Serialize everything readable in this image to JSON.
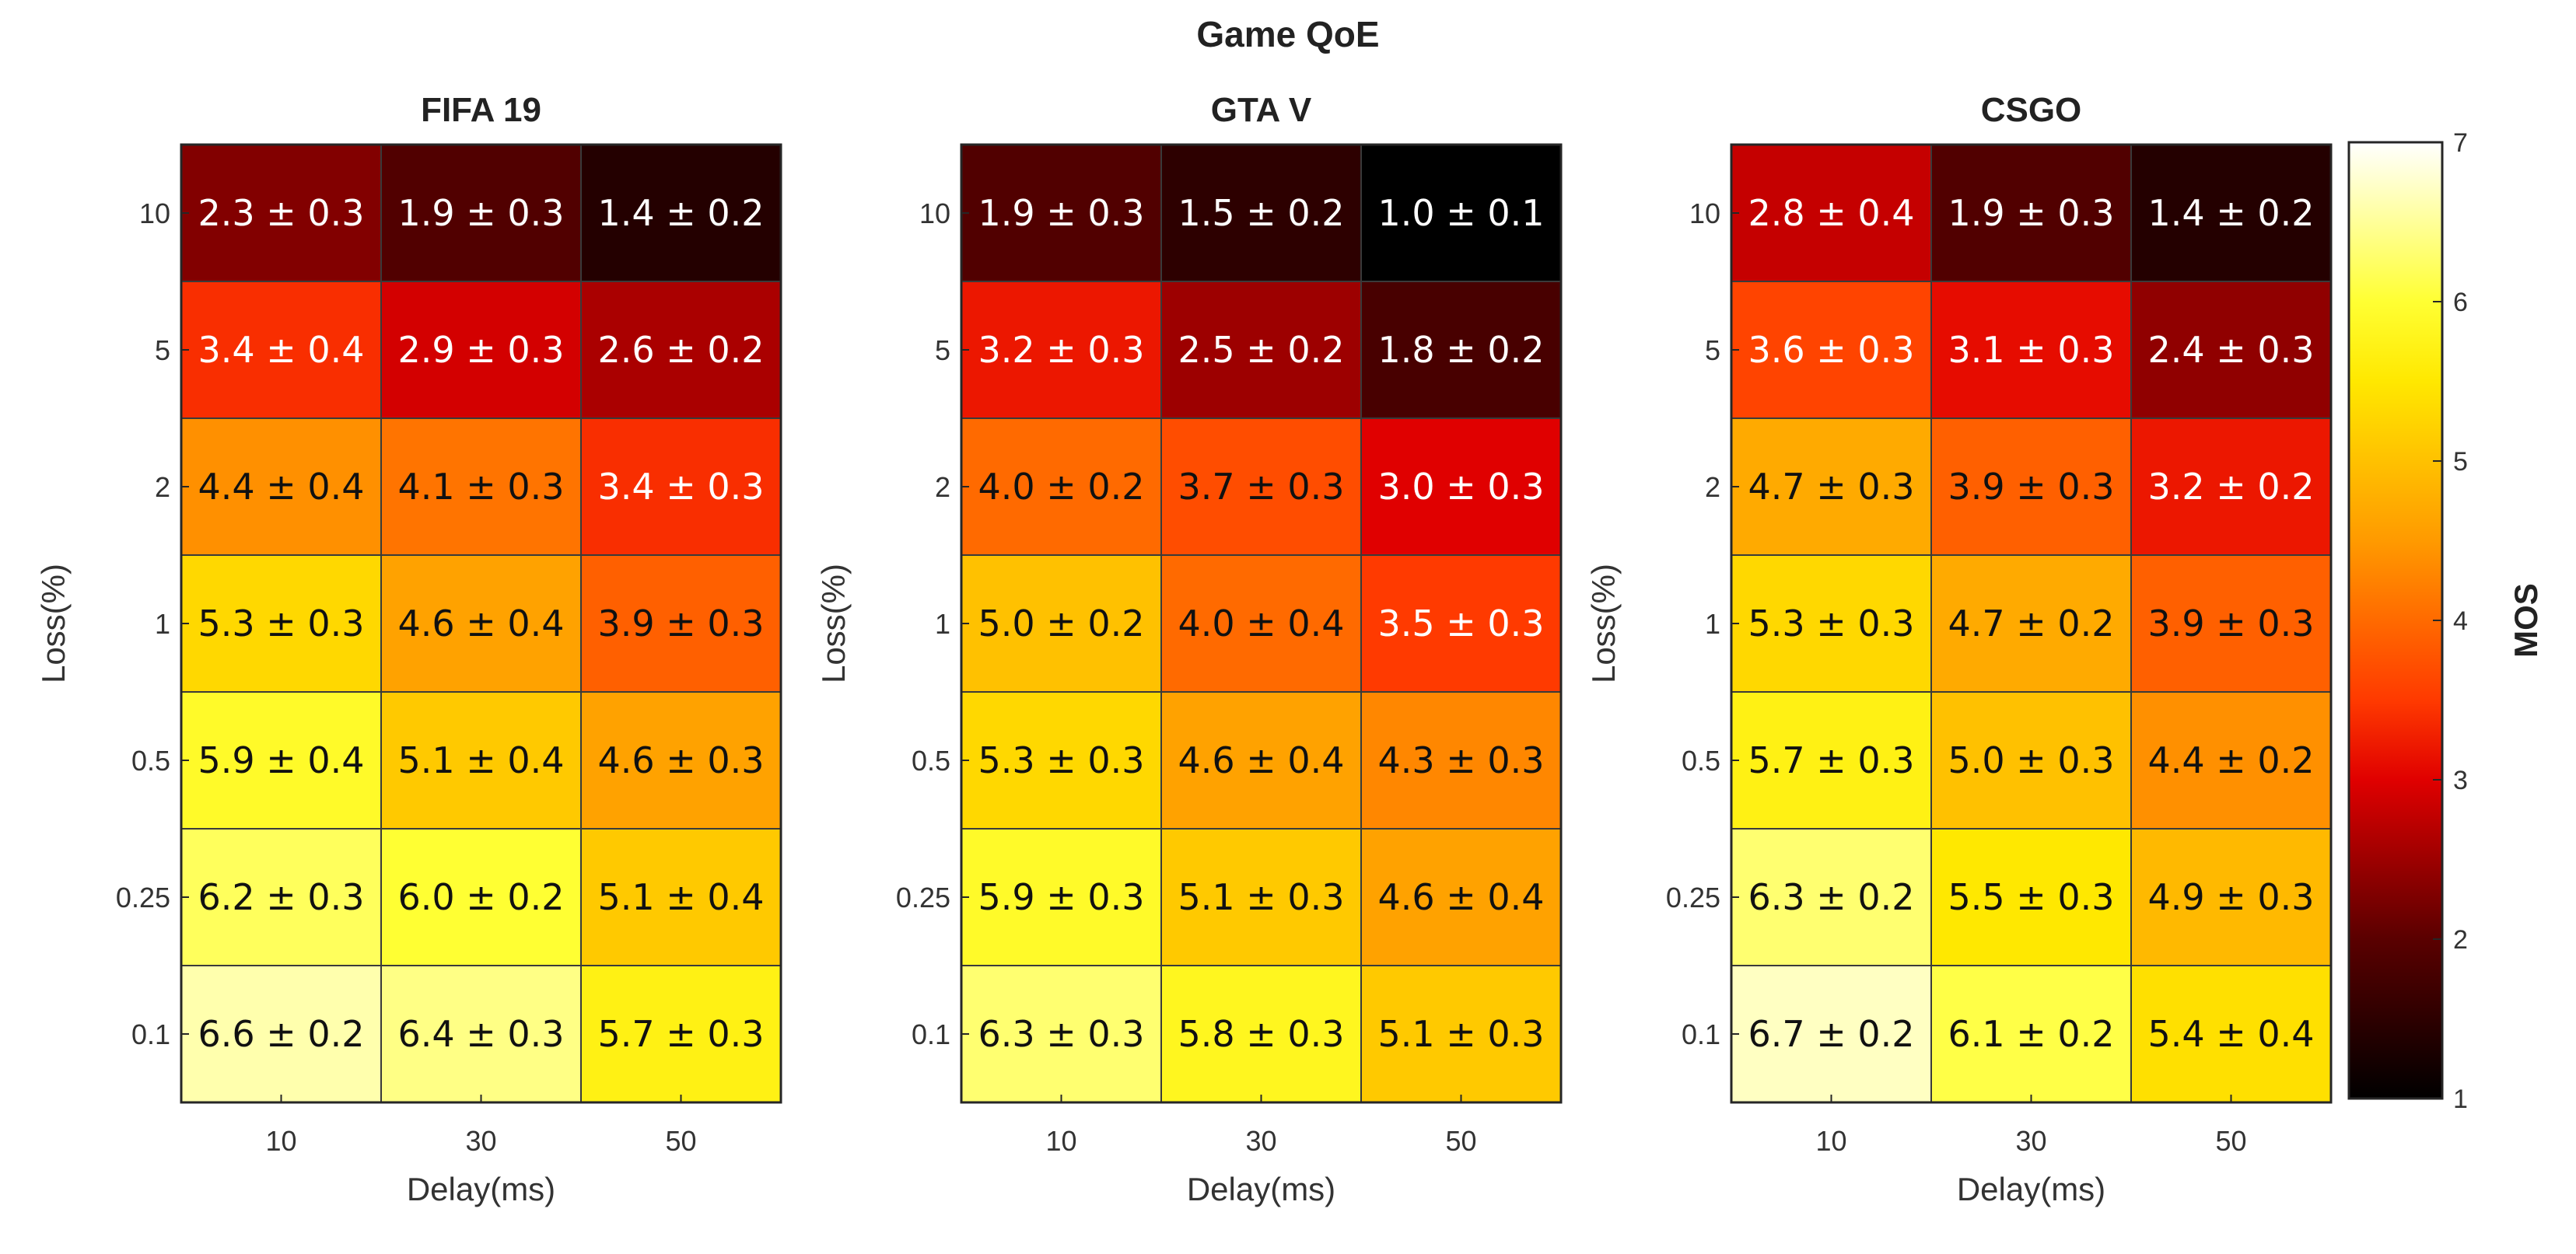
{
  "figure_title": "Game QoE",
  "chart_data": {
    "type": "heatmap",
    "title": "Game QoE",
    "colorbar": {
      "label": "MOS",
      "range": [
        1,
        7
      ],
      "ticks": [
        "1",
        "2",
        "3",
        "4",
        "5",
        "6",
        "7"
      ],
      "colormap": "hot"
    },
    "x_categories": [
      "10",
      "30",
      "50"
    ],
    "y_categories": [
      "10",
      "5",
      "2",
      "1",
      "0.5",
      "0.25",
      "0.1"
    ],
    "xlabel": "Delay(ms)",
    "ylabel": "Loss(%)",
    "panels": [
      {
        "title": "FIFA 19",
        "mean": [
          [
            2.3,
            1.9,
            1.4
          ],
          [
            3.4,
            2.9,
            2.6
          ],
          [
            4.4,
            4.1,
            3.4
          ],
          [
            5.3,
            4.6,
            3.9
          ],
          [
            5.9,
            5.1,
            4.6
          ],
          [
            6.2,
            6.0,
            5.1
          ],
          [
            6.6,
            6.4,
            5.7
          ]
        ],
        "labels": [
          [
            "2.3 ± 0.3",
            "1.9 ± 0.3",
            "1.4 ± 0.2"
          ],
          [
            "3.4 ± 0.4",
            "2.9 ± 0.3",
            "2.6 ± 0.2"
          ],
          [
            "4.4 ± 0.4",
            "4.1 ± 0.3",
            "3.4 ± 0.3"
          ],
          [
            "5.3 ± 0.3",
            "4.6 ± 0.4",
            "3.9 ± 0.3"
          ],
          [
            "5.9 ± 0.4",
            "5.1 ± 0.4",
            "4.6 ± 0.3"
          ],
          [
            "6.2 ± 0.3",
            "6.0 ± 0.2",
            "5.1 ± 0.4"
          ],
          [
            "6.6 ± 0.2",
            "6.4 ± 0.3",
            "5.7 ± 0.3"
          ]
        ]
      },
      {
        "title": "GTA V",
        "mean": [
          [
            1.9,
            1.5,
            1.0
          ],
          [
            3.2,
            2.5,
            1.8
          ],
          [
            4.0,
            3.7,
            3.0
          ],
          [
            5.0,
            4.0,
            3.5
          ],
          [
            5.3,
            4.6,
            4.3
          ],
          [
            5.9,
            5.1,
            4.6
          ],
          [
            6.3,
            5.8,
            5.1
          ]
        ],
        "labels": [
          [
            "1.9 ± 0.3",
            "1.5 ± 0.2",
            "1.0 ± 0.1"
          ],
          [
            "3.2 ± 0.3",
            "2.5 ± 0.2",
            "1.8 ± 0.2"
          ],
          [
            "4.0 ± 0.2",
            "3.7 ± 0.3",
            "3.0 ± 0.3"
          ],
          [
            "5.0 ± 0.2",
            "4.0 ± 0.4",
            "3.5 ± 0.3"
          ],
          [
            "5.3 ± 0.3",
            "4.6 ± 0.4",
            "4.3 ± 0.3"
          ],
          [
            "5.9 ± 0.3",
            "5.1 ± 0.3",
            "4.6 ± 0.4"
          ],
          [
            "6.3 ± 0.3",
            "5.8 ± 0.3",
            "5.1 ± 0.3"
          ]
        ]
      },
      {
        "title": "CSGO",
        "mean": [
          [
            2.8,
            1.9,
            1.4
          ],
          [
            3.6,
            3.1,
            2.4
          ],
          [
            4.7,
            3.9,
            3.2
          ],
          [
            5.3,
            4.7,
            3.9
          ],
          [
            5.7,
            5.0,
            4.4
          ],
          [
            6.3,
            5.5,
            4.9
          ],
          [
            6.7,
            6.1,
            5.4
          ]
        ],
        "labels": [
          [
            "2.8 ± 0.4",
            "1.9 ± 0.3",
            "1.4 ± 0.2"
          ],
          [
            "3.6 ± 0.3",
            "3.1 ± 0.3",
            "2.4 ± 0.3"
          ],
          [
            "4.7 ± 0.3",
            "3.9 ± 0.3",
            "3.2 ± 0.2"
          ],
          [
            "5.3 ± 0.3",
            "4.7 ± 0.2",
            "3.9 ± 0.3"
          ],
          [
            "5.7 ± 0.3",
            "5.0 ± 0.3",
            "4.4 ± 0.2"
          ],
          [
            "6.3 ± 0.2",
            "5.5 ± 0.3",
            "4.9 ± 0.3"
          ],
          [
            "6.7 ± 0.2",
            "6.1 ± 0.2",
            "5.4 ± 0.4"
          ]
        ]
      }
    ]
  }
}
